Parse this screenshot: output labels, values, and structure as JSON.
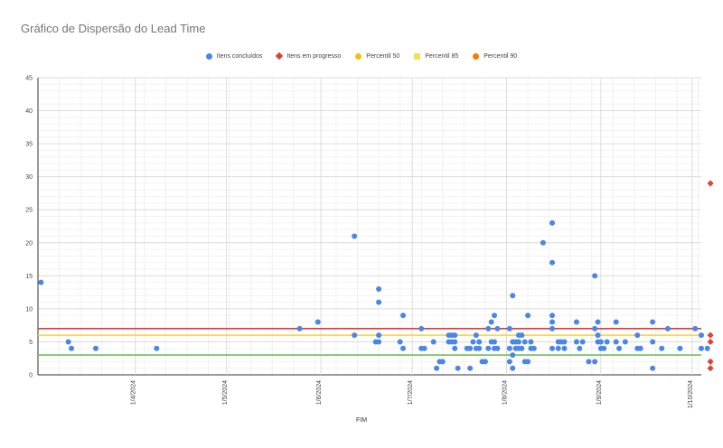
{
  "chart_data": {
    "type": "scatter",
    "title": "Gráfico de Dispersão do Lead Time",
    "xlabel": "FIM",
    "ylabel": "",
    "ylim": [
      0,
      45
    ],
    "yticks": [
      0,
      5,
      10,
      15,
      20,
      25,
      30,
      35,
      40,
      45
    ],
    "xlim": [
      "2024-02-29",
      "2024-10-04"
    ],
    "xticks": [
      "1/4/2024",
      "1/5/2024",
      "1/6/2024",
      "1/7/2024",
      "1/8/2024",
      "1/9/2024",
      "1/10/2024"
    ],
    "grid": true,
    "legend_position": "top",
    "legend": [
      {
        "name": "Itens concluídos",
        "marker": "circle",
        "color": "#4a86e8"
      },
      {
        "name": "Itens em progresso",
        "marker": "diamond",
        "color": "#db4437"
      },
      {
        "name": "Percentil 50",
        "marker": "square",
        "color": "#f4c20d"
      },
      {
        "name": "Percentil 85",
        "marker": "square",
        "color": "#f1e05a"
      },
      {
        "name": "Percentil 90",
        "marker": "square",
        "color": "#f57c00"
      }
    ],
    "reference_lines": [
      {
        "name": "Percentil 50",
        "y": 3,
        "color": "#6fbf5a"
      },
      {
        "name": "Percentil 85",
        "y": 6,
        "color": "#f4d03f"
      },
      {
        "name": "Percentil 90",
        "y": 7,
        "color": "#e53935"
      }
    ],
    "series": [
      {
        "name": "Itens concluídos",
        "color": "#4a86e8",
        "points": [
          [
            "2024-03-01",
            14
          ],
          [
            "2024-03-10",
            5
          ],
          [
            "2024-03-11",
            4
          ],
          [
            "2024-03-19",
            4
          ],
          [
            "2024-04-08",
            4
          ],
          [
            "2024-05-25",
            7
          ],
          [
            "2024-05-31",
            8
          ],
          [
            "2024-06-12",
            21
          ],
          [
            "2024-06-12",
            6
          ],
          [
            "2024-06-20",
            13
          ],
          [
            "2024-06-20",
            11
          ],
          [
            "2024-06-20",
            6
          ],
          [
            "2024-06-19",
            5
          ],
          [
            "2024-06-20",
            5
          ],
          [
            "2024-06-27",
            5
          ],
          [
            "2024-06-28",
            9
          ],
          [
            "2024-06-28",
            4
          ],
          [
            "2024-07-04",
            7
          ],
          [
            "2024-07-04",
            4
          ],
          [
            "2024-07-05",
            4
          ],
          [
            "2024-07-08",
            5
          ],
          [
            "2024-07-09",
            1
          ],
          [
            "2024-07-10",
            2
          ],
          [
            "2024-07-11",
            2
          ],
          [
            "2024-07-13",
            6
          ],
          [
            "2024-07-13",
            5
          ],
          [
            "2024-07-14",
            6
          ],
          [
            "2024-07-14",
            5
          ],
          [
            "2024-07-15",
            6
          ],
          [
            "2024-07-15",
            4
          ],
          [
            "2024-07-15",
            5
          ],
          [
            "2024-07-16",
            1
          ],
          [
            "2024-07-19",
            4
          ],
          [
            "2024-07-20",
            1
          ],
          [
            "2024-07-20",
            4
          ],
          [
            "2024-07-21",
            5
          ],
          [
            "2024-07-22",
            6
          ],
          [
            "2024-07-22",
            4
          ],
          [
            "2024-07-23",
            5
          ],
          [
            "2024-07-23",
            4
          ],
          [
            "2024-07-24",
            2
          ],
          [
            "2024-07-25",
            2
          ],
          [
            "2024-07-26",
            4
          ],
          [
            "2024-07-26",
            7
          ],
          [
            "2024-07-27",
            8
          ],
          [
            "2024-07-27",
            5
          ],
          [
            "2024-07-28",
            9
          ],
          [
            "2024-07-28",
            5
          ],
          [
            "2024-07-28",
            4
          ],
          [
            "2024-07-29",
            7
          ],
          [
            "2024-07-29",
            4
          ],
          [
            "2024-08-02",
            7
          ],
          [
            "2024-08-02",
            4
          ],
          [
            "2024-08-02",
            2
          ],
          [
            "2024-08-03",
            5
          ],
          [
            "2024-08-03",
            12
          ],
          [
            "2024-08-03",
            3
          ],
          [
            "2024-08-03",
            1
          ],
          [
            "2024-08-04",
            5
          ],
          [
            "2024-08-04",
            4
          ],
          [
            "2024-08-05",
            6
          ],
          [
            "2024-08-05",
            5
          ],
          [
            "2024-08-05",
            4
          ],
          [
            "2024-08-06",
            6
          ],
          [
            "2024-08-06",
            4
          ],
          [
            "2024-08-07",
            2
          ],
          [
            "2024-08-07",
            5
          ],
          [
            "2024-08-08",
            2
          ],
          [
            "2024-08-08",
            9
          ],
          [
            "2024-08-09",
            4
          ],
          [
            "2024-08-09",
            5
          ],
          [
            "2024-08-10",
            4
          ],
          [
            "2024-08-13",
            20
          ],
          [
            "2024-08-16",
            23
          ],
          [
            "2024-08-16",
            17
          ],
          [
            "2024-08-16",
            9
          ],
          [
            "2024-08-16",
            8
          ],
          [
            "2024-08-16",
            7
          ],
          [
            "2024-08-16",
            4
          ],
          [
            "2024-08-18",
            5
          ],
          [
            "2024-08-18",
            4
          ],
          [
            "2024-08-19",
            5
          ],
          [
            "2024-08-20",
            4
          ],
          [
            "2024-08-20",
            5
          ],
          [
            "2024-08-24",
            8
          ],
          [
            "2024-08-24",
            5
          ],
          [
            "2024-08-25",
            4
          ],
          [
            "2024-08-26",
            5
          ],
          [
            "2024-08-28",
            2
          ],
          [
            "2024-08-30",
            15
          ],
          [
            "2024-08-30",
            7
          ],
          [
            "2024-08-30",
            2
          ],
          [
            "2024-08-31",
            8
          ],
          [
            "2024-08-31",
            6
          ],
          [
            "2024-08-31",
            5
          ],
          [
            "2024-09-01",
            4
          ],
          [
            "2024-09-01",
            5
          ],
          [
            "2024-09-02",
            4
          ],
          [
            "2024-09-03",
            5
          ],
          [
            "2024-09-06",
            8
          ],
          [
            "2024-09-06",
            5
          ],
          [
            "2024-09-07",
            4
          ],
          [
            "2024-09-09",
            5
          ],
          [
            "2024-09-13",
            6
          ],
          [
            "2024-09-13",
            4
          ],
          [
            "2024-09-14",
            4
          ],
          [
            "2024-09-18",
            8
          ],
          [
            "2024-09-18",
            5
          ],
          [
            "2024-09-18",
            1
          ],
          [
            "2024-09-21",
            4
          ],
          [
            "2024-09-23",
            7
          ],
          [
            "2024-09-27",
            4
          ],
          [
            "2024-10-02",
            7
          ],
          [
            "2024-10-04",
            6
          ],
          [
            "2024-10-04",
            4
          ],
          [
            "2024-10-06",
            4
          ]
        ]
      },
      {
        "name": "Itens em progresso",
        "color": "#db4437",
        "points": [
          [
            "2024-10-07",
            29
          ],
          [
            "2024-10-07",
            6
          ],
          [
            "2024-10-07",
            5
          ],
          [
            "2024-10-07",
            2
          ],
          [
            "2024-10-07",
            1
          ]
        ]
      }
    ]
  }
}
